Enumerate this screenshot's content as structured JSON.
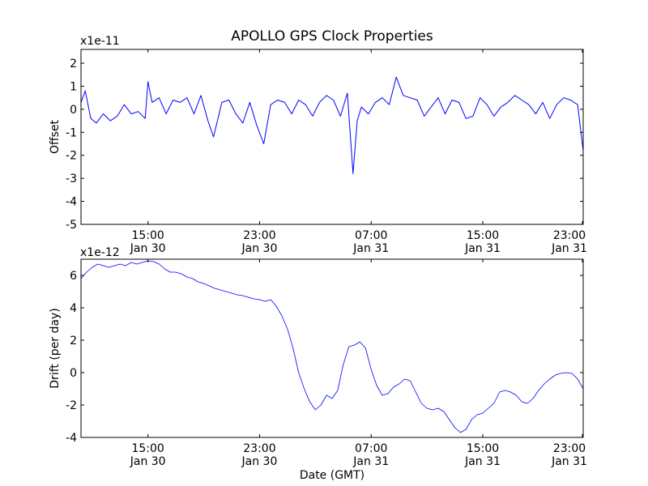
{
  "chart_data": [
    {
      "type": "line",
      "title": "APOLLO GPS Clock Properties",
      "ylabel": "Offset",
      "xlabel": "",
      "offset_label": "x1e-11",
      "line_color": "#0000ff",
      "ylim": [
        -5,
        2.6
      ],
      "xlim": [
        10.2,
        46.2
      ],
      "yticks": [
        -5,
        -4,
        -3,
        -2,
        -1,
        0,
        1,
        2
      ],
      "ytick_labels": [
        "-5",
        "-4",
        "-3",
        "-2",
        "-1",
        "0",
        "1",
        "2"
      ],
      "xticks": [
        15,
        23,
        31,
        39,
        47
      ],
      "xtick_time": [
        "15:00",
        "23:00",
        "07:00",
        "15:00",
        "23:00"
      ],
      "xtick_date": [
        "Jan 30",
        "Jan 30",
        "Jan 31",
        "Jan 31",
        "Jan 31"
      ],
      "x_units": "hours since Jan 30 00:00 GMT",
      "series": [
        {
          "name": "Offset",
          "x": [
            10.2,
            10.5,
            10.9,
            11.3,
            11.8,
            12.3,
            12.8,
            13.3,
            13.8,
            14.3,
            14.8,
            15.0,
            15.3,
            15.8,
            16.3,
            16.8,
            17.3,
            17.8,
            18.3,
            18.8,
            19.3,
            19.7,
            20.3,
            20.8,
            21.3,
            21.8,
            22.3,
            22.8,
            23.3,
            23.8,
            24.3,
            24.8,
            25.3,
            25.8,
            26.3,
            26.8,
            27.3,
            27.8,
            28.3,
            28.8,
            29.3,
            29.7,
            30.0,
            30.3,
            30.8,
            31.3,
            31.8,
            32.3,
            32.8,
            33.3,
            33.8,
            34.3,
            34.8,
            35.3,
            35.8,
            36.3,
            36.8,
            37.3,
            37.8,
            38.3,
            38.8,
            39.3,
            39.8,
            40.3,
            40.8,
            41.3,
            41.8,
            42.3,
            42.8,
            43.3,
            43.8,
            44.3,
            44.8,
            45.3,
            45.8,
            46.2
          ],
          "y": [
            0.3,
            0.8,
            -0.4,
            -0.6,
            -0.2,
            -0.5,
            -0.3,
            0.2,
            -0.2,
            -0.1,
            -0.4,
            1.2,
            0.3,
            0.5,
            -0.2,
            0.4,
            0.3,
            0.5,
            -0.2,
            0.6,
            -0.5,
            -1.2,
            0.3,
            0.4,
            -0.2,
            -0.6,
            0.3,
            -0.7,
            -1.5,
            0.2,
            0.4,
            0.3,
            -0.2,
            0.4,
            0.2,
            -0.3,
            0.3,
            0.6,
            0.4,
            -0.3,
            0.7,
            -2.8,
            -0.5,
            0.1,
            -0.2,
            0.3,
            0.5,
            0.2,
            1.4,
            0.6,
            0.5,
            0.4,
            -0.3,
            0.1,
            0.5,
            -0.2,
            0.4,
            0.3,
            -0.4,
            -0.3,
            0.5,
            0.2,
            -0.3,
            0.1,
            0.3,
            0.6,
            0.4,
            0.2,
            -0.2,
            0.3,
            -0.4,
            0.2,
            0.5,
            0.4,
            0.2,
            -1.8
          ]
        }
      ]
    },
    {
      "type": "line",
      "title": "",
      "ylabel": "Drift (per day)",
      "xlabel": "Date (GMT)",
      "offset_label": "x1e-12",
      "line_color": "#0000ff",
      "ylim": [
        -4,
        7
      ],
      "xlim": [
        10.2,
        46.2
      ],
      "yticks": [
        -4,
        -2,
        0,
        2,
        4,
        6
      ],
      "ytick_labels": [
        "-4",
        "-2",
        "0",
        "2",
        "4",
        "6"
      ],
      "xticks": [
        15,
        23,
        31,
        39,
        47
      ],
      "xtick_time": [
        "15:00",
        "23:00",
        "07:00",
        "15:00",
        "23:00"
      ],
      "xtick_date": [
        "Jan 30",
        "Jan 30",
        "Jan 31",
        "Jan 31",
        "Jan 31"
      ],
      "x_units": "hours since Jan 30 00:00 GMT",
      "series": [
        {
          "name": "Drift",
          "x": [
            10.2,
            10.6,
            11.0,
            11.4,
            11.8,
            12.2,
            12.6,
            13.0,
            13.4,
            13.8,
            14.2,
            14.6,
            15.0,
            15.4,
            15.8,
            16.2,
            16.6,
            17.0,
            17.4,
            17.8,
            18.2,
            18.6,
            19.0,
            19.4,
            19.8,
            20.2,
            20.6,
            21.0,
            21.4,
            21.8,
            22.2,
            22.6,
            23.0,
            23.4,
            23.8,
            24.2,
            24.6,
            25.0,
            25.4,
            25.8,
            26.2,
            26.6,
            27.0,
            27.4,
            27.8,
            28.2,
            28.6,
            29.0,
            29.4,
            29.8,
            30.2,
            30.6,
            31.0,
            31.4,
            31.8,
            32.2,
            32.6,
            33.0,
            33.4,
            33.8,
            34.2,
            34.6,
            35.0,
            35.4,
            35.8,
            36.2,
            36.6,
            37.0,
            37.4,
            37.8,
            38.2,
            38.6,
            39.0,
            39.4,
            39.8,
            40.2,
            40.6,
            41.0,
            41.4,
            41.8,
            42.2,
            42.6,
            43.0,
            43.4,
            43.8,
            44.2,
            44.6,
            45.0,
            45.4,
            45.8,
            46.2
          ],
          "y": [
            5.8,
            6.2,
            6.5,
            6.7,
            6.6,
            6.5,
            6.6,
            6.7,
            6.6,
            6.8,
            6.7,
            6.8,
            6.9,
            6.85,
            6.7,
            6.4,
            6.2,
            6.2,
            6.1,
            5.9,
            5.8,
            5.6,
            5.5,
            5.35,
            5.2,
            5.1,
            5.0,
            4.9,
            4.8,
            4.75,
            4.65,
            4.55,
            4.5,
            4.4,
            4.5,
            4.1,
            3.5,
            2.7,
            1.5,
            0.0,
            -1.0,
            -1.8,
            -2.3,
            -2.0,
            -1.4,
            -1.6,
            -1.1,
            0.5,
            1.6,
            1.7,
            1.9,
            1.5,
            0.2,
            -0.8,
            -1.4,
            -1.3,
            -0.9,
            -0.7,
            -0.4,
            -0.5,
            -1.2,
            -1.9,
            -2.2,
            -2.3,
            -2.2,
            -2.4,
            -2.9,
            -3.4,
            -3.7,
            -3.5,
            -2.9,
            -2.6,
            -2.5,
            -2.2,
            -1.9,
            -1.2,
            -1.1,
            -1.2,
            -1.4,
            -1.8,
            -1.9,
            -1.6,
            -1.1,
            -0.7,
            -0.4,
            -0.15,
            -0.05,
            0.0,
            -0.05,
            -0.4,
            -1.0
          ]
        }
      ]
    }
  ]
}
